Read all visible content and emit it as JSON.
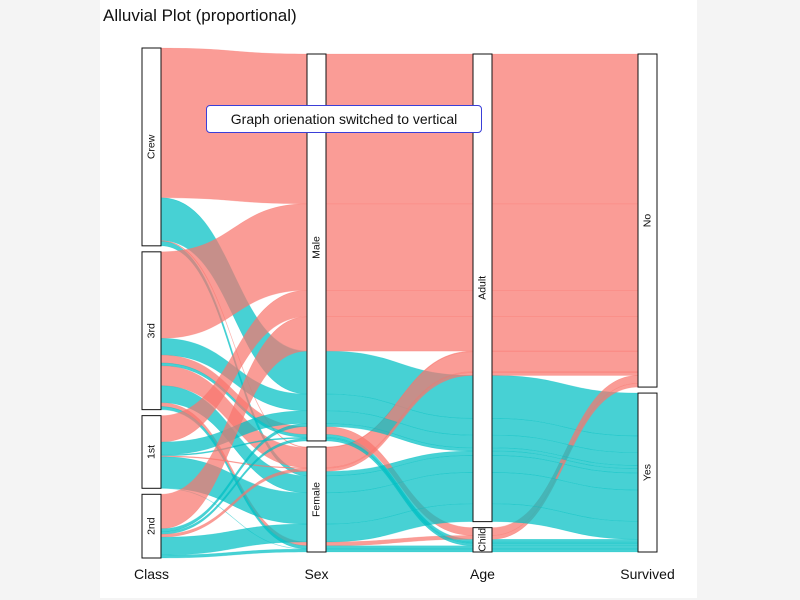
{
  "title": "Alluvial Plot (proportional)",
  "tooltip": "Graph orienation switched to vertical",
  "colors": {
    "No": "#f8766d",
    "Yes": "#00bfc4"
  },
  "chart_data": {
    "type": "alluvial",
    "axes": [
      {
        "name": "Class",
        "categories": [
          "Crew",
          "3rd",
          "1st",
          "2nd"
        ]
      },
      {
        "name": "Sex",
        "categories": [
          "Male",
          "Female"
        ]
      },
      {
        "name": "Age",
        "categories": [
          "Adult",
          "Child"
        ]
      },
      {
        "name": "Survived",
        "categories": [
          "No",
          "Yes"
        ]
      }
    ],
    "flows": [
      {
        "Class": "Crew",
        "Sex": "Male",
        "Age": "Adult",
        "Survived": "No",
        "Freq": 670
      },
      {
        "Class": "Crew",
        "Sex": "Male",
        "Age": "Adult",
        "Survived": "Yes",
        "Freq": 192
      },
      {
        "Class": "Crew",
        "Sex": "Female",
        "Age": "Adult",
        "Survived": "No",
        "Freq": 3
      },
      {
        "Class": "Crew",
        "Sex": "Female",
        "Age": "Adult",
        "Survived": "Yes",
        "Freq": 20
      },
      {
        "Class": "3rd",
        "Sex": "Male",
        "Age": "Adult",
        "Survived": "No",
        "Freq": 387
      },
      {
        "Class": "3rd",
        "Sex": "Male",
        "Age": "Adult",
        "Survived": "Yes",
        "Freq": 75
      },
      {
        "Class": "3rd",
        "Sex": "Male",
        "Age": "Child",
        "Survived": "No",
        "Freq": 35
      },
      {
        "Class": "3rd",
        "Sex": "Male",
        "Age": "Child",
        "Survived": "Yes",
        "Freq": 13
      },
      {
        "Class": "3rd",
        "Sex": "Female",
        "Age": "Adult",
        "Survived": "No",
        "Freq": 89
      },
      {
        "Class": "3rd",
        "Sex": "Female",
        "Age": "Adult",
        "Survived": "Yes",
        "Freq": 76
      },
      {
        "Class": "3rd",
        "Sex": "Female",
        "Age": "Child",
        "Survived": "No",
        "Freq": 17
      },
      {
        "Class": "3rd",
        "Sex": "Female",
        "Age": "Child",
        "Survived": "Yes",
        "Freq": 14
      },
      {
        "Class": "1st",
        "Sex": "Male",
        "Age": "Adult",
        "Survived": "No",
        "Freq": 118
      },
      {
        "Class": "1st",
        "Sex": "Male",
        "Age": "Adult",
        "Survived": "Yes",
        "Freq": 57
      },
      {
        "Class": "1st",
        "Sex": "Male",
        "Age": "Child",
        "Survived": "Yes",
        "Freq": 5
      },
      {
        "Class": "1st",
        "Sex": "Female",
        "Age": "Adult",
        "Survived": "No",
        "Freq": 4
      },
      {
        "Class": "1st",
        "Sex": "Female",
        "Age": "Adult",
        "Survived": "Yes",
        "Freq": 140
      },
      {
        "Class": "1st",
        "Sex": "Female",
        "Age": "Child",
        "Survived": "Yes",
        "Freq": 1
      },
      {
        "Class": "2nd",
        "Sex": "Male",
        "Age": "Adult",
        "Survived": "No",
        "Freq": 154
      },
      {
        "Class": "2nd",
        "Sex": "Male",
        "Age": "Adult",
        "Survived": "Yes",
        "Freq": 14
      },
      {
        "Class": "2nd",
        "Sex": "Male",
        "Age": "Child",
        "Survived": "Yes",
        "Freq": 11
      },
      {
        "Class": "2nd",
        "Sex": "Female",
        "Age": "Adult",
        "Survived": "No",
        "Freq": 13
      },
      {
        "Class": "2nd",
        "Sex": "Female",
        "Age": "Adult",
        "Survived": "Yes",
        "Freq": 80
      },
      {
        "Class": "2nd",
        "Sex": "Female",
        "Age": "Child",
        "Survived": "Yes",
        "Freq": 13
      }
    ],
    "fill_by": "Survived"
  }
}
